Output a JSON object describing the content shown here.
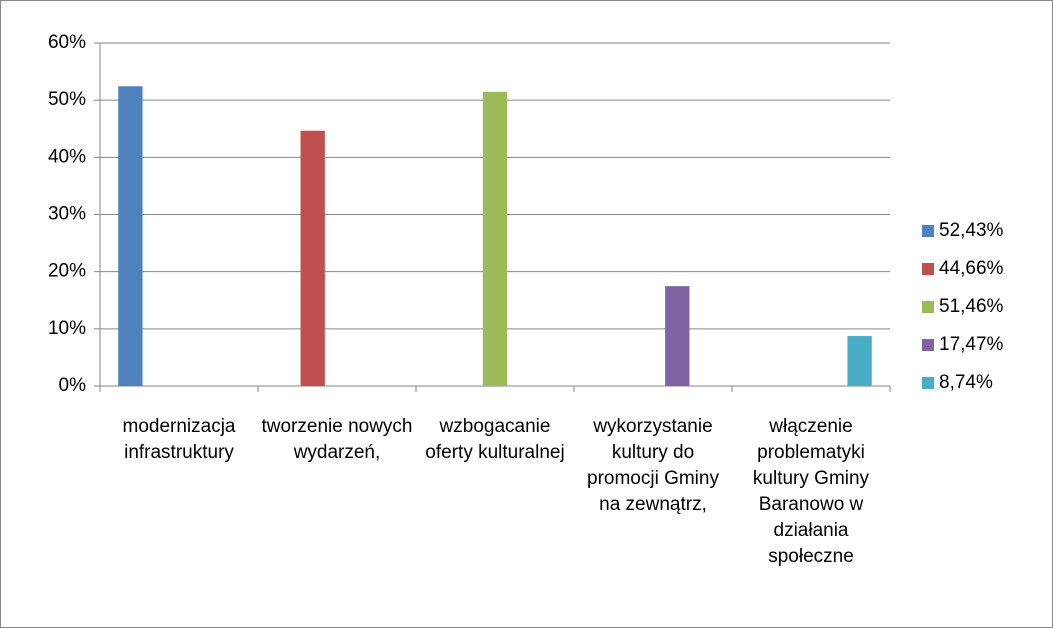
{
  "chart_data": {
    "type": "bar",
    "categories": [
      "modernizacja infrastruktury",
      "tworzenie nowych wydarzeń,",
      "wzbogacanie oferty kulturalnej",
      "wykorzystanie kultury do promocji Gminy na zewnątrz,",
      "włączenie problematyki kultury Gminy Baranowo w działania społeczne"
    ],
    "series": [
      {
        "name": "52,43%",
        "color": "#4f81bd",
        "values": [
          52.43,
          null,
          null,
          null,
          null
        ]
      },
      {
        "name": "44,66%",
        "color": "#c0504d",
        "values": [
          null,
          44.66,
          null,
          null,
          null
        ]
      },
      {
        "name": "51,46%",
        "color": "#9bbb59",
        "values": [
          null,
          null,
          51.46,
          null,
          null
        ]
      },
      {
        "name": "17,47%",
        "color": "#8064a2",
        "values": [
          null,
          null,
          null,
          17.47,
          null
        ]
      },
      {
        "name": "8,74%",
        "color": "#4bacc6",
        "values": [
          null,
          null,
          null,
          null,
          8.74
        ]
      }
    ],
    "ylim": [
      0,
      60
    ],
    "yticks": [
      {
        "value": 0,
        "label": "0%"
      },
      {
        "value": 10,
        "label": "10%"
      },
      {
        "value": 20,
        "label": "20%"
      },
      {
        "value": 30,
        "label": "30%"
      },
      {
        "value": 40,
        "label": "40%"
      },
      {
        "value": 50,
        "label": "50%"
      },
      {
        "value": 60,
        "label": "60%"
      }
    ],
    "grid": true,
    "legend": "right"
  }
}
